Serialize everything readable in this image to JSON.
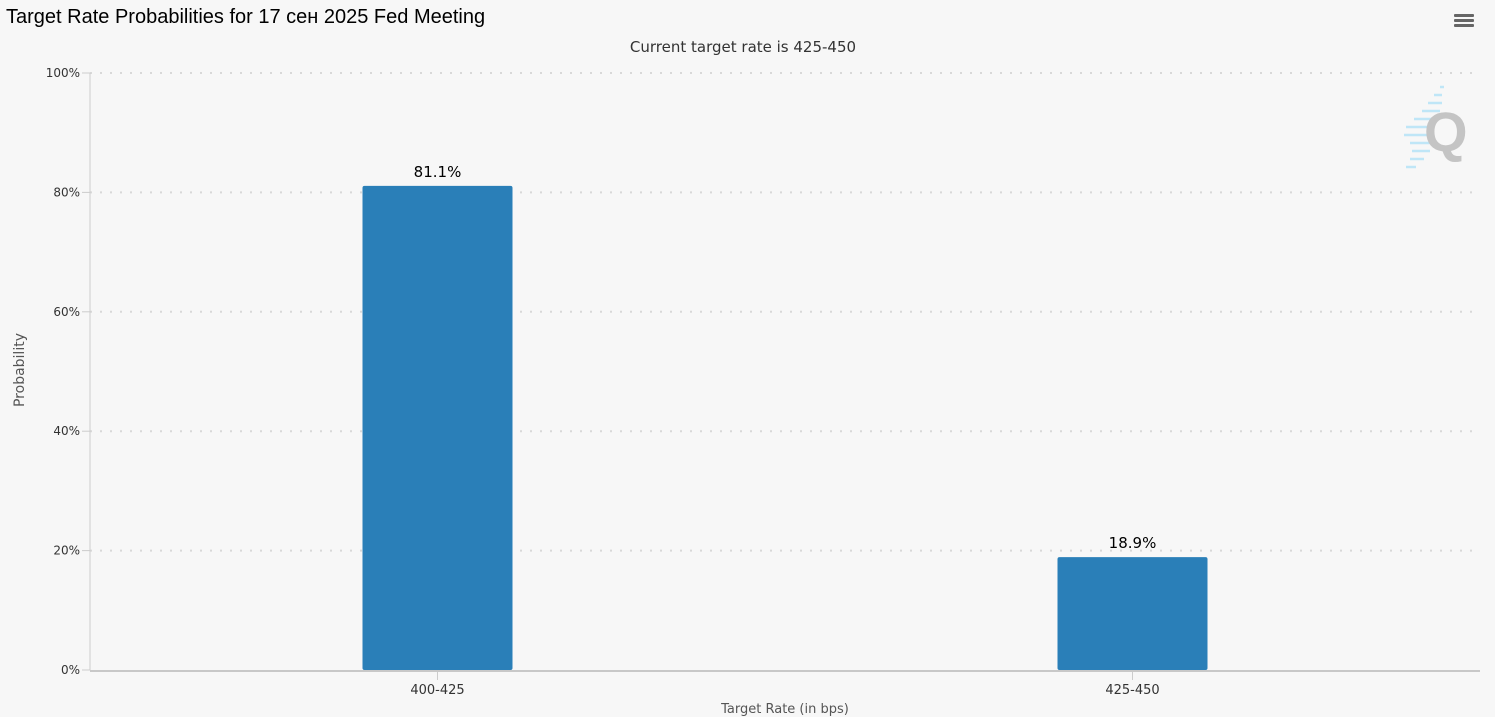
{
  "chart_data": {
    "type": "bar",
    "title": "Target Rate Probabilities for 17 сен 2025 Fed Meeting",
    "subtitle": "Current target rate is 425-450",
    "xlabel": "Target Rate (in bps)",
    "ylabel": "Probability",
    "categories": [
      "400-425",
      "425-450"
    ],
    "values": [
      81.1,
      18.9
    ],
    "data_labels": [
      "81.1%",
      "18.9%"
    ],
    "ylim": [
      0,
      100
    ],
    "yticks": [
      "0%",
      "20%",
      "40%",
      "60%",
      "80%",
      "100%"
    ],
    "grid": true,
    "legend": "none",
    "bar_color": "#2a7fb8"
  },
  "menu_icon": "hamburger-menu-icon",
  "watermark": "Q"
}
